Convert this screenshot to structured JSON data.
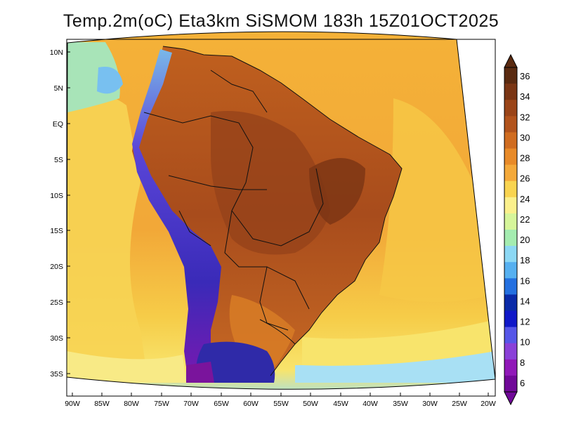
{
  "title": "Temp.2m(oC) Eta3km SiSMOM 183h 15Z01OCT2025",
  "lat_labels": [
    "10N",
    "5N",
    "EQ",
    "5S",
    "10S",
    "15S",
    "20S",
    "25S",
    "30S",
    "35S"
  ],
  "lon_labels": [
    "90W",
    "85W",
    "80W",
    "75W",
    "70W",
    "65W",
    "60W",
    "55W",
    "50W",
    "45W",
    "40W",
    "35W",
    "30W",
    "25W",
    "20W"
  ],
  "colorbar": {
    "labels": [
      "36",
      "34",
      "32",
      "30",
      "28",
      "26",
      "24",
      "22",
      "20",
      "18",
      "16",
      "14",
      "12",
      "10",
      "8",
      "6"
    ],
    "colors": [
      "#5a2a10",
      "#7a3514",
      "#9a4418",
      "#b2531c",
      "#d06c20",
      "#e88a28",
      "#f4a93a",
      "#f9d450",
      "#fbf08c",
      "#d6f59a",
      "#a4ecb0",
      "#8cd8f4",
      "#56b0f0",
      "#2470e0",
      "#0a2aa8",
      "#1018c8",
      "#5656e8",
      "#8a40d8",
      "#9018b8",
      "#700898"
    ]
  },
  "colors": {
    "ocean_warm": "#f2a838",
    "ocean_mid": "#f6c640",
    "ocean_cool": "#f9e36a",
    "ocean_cold": "#b8ecf8",
    "land_hot": "#b25420",
    "land_hotter": "#8e3f16",
    "andes": "#6a3ad8",
    "cold_south": "#3b3ec8"
  }
}
